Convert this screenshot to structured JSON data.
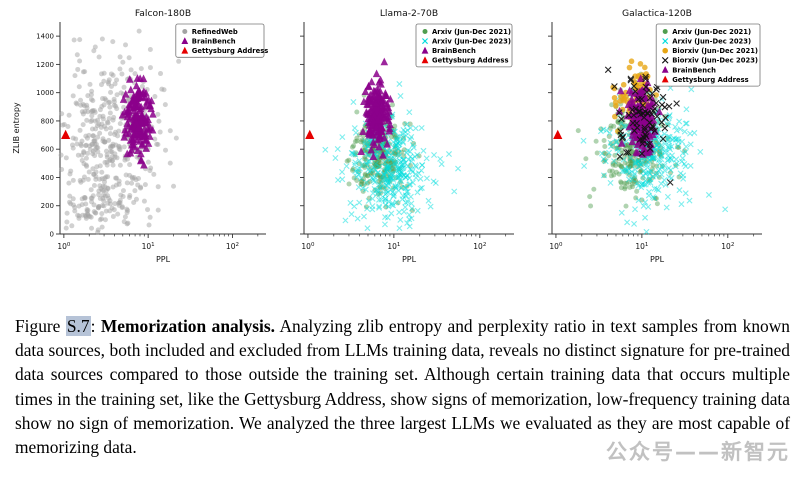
{
  "caption": {
    "figure_word": "Figure ",
    "ref": "S.7",
    "colon": ": ",
    "bold_title": "Memorization analysis.",
    "body": " Analyzing zlib entropy and perplexity ratio in text samples from known data sources, both included and excluded from LLMs training data, reveals no distinct signature for pre-trained data sources compared to those outside the training set. Although certain training data that occurs multiple times in the training set, like the Gettysburg Address, show signs of memorization, low-frequency training data show no sign of memorization. We analyzed the three largest LLMs we evaluated as they are most capable of memorizing data.",
    "ref_highlight_color": "#b6c3d7"
  },
  "watermark": {
    "text": "公众号——新智元",
    "color": "#8f8f8f"
  },
  "chart_data": [
    {
      "type": "scatter",
      "title": "Falcon-180B",
      "xlabel": "PPL",
      "ylabel": "ZLIB entropy",
      "show_ylabel": true,
      "show_ytick_labels": true,
      "x_scale": "log",
      "xlim": [
        0.9,
        250
      ],
      "ylim": [
        0,
        1500
      ],
      "yticks": [
        0,
        200,
        400,
        600,
        800,
        1000,
        1200,
        1400
      ],
      "xtick_exponents": [
        0,
        1,
        2
      ],
      "legend_position": "top-right",
      "series": [
        {
          "name": "RefinedWeb",
          "marker": "circle",
          "color": "#a3a3a3",
          "opacity": 0.5,
          "size": 2.5,
          "seed": 11,
          "zorder": 1,
          "clusters": [
            {
              "n": 420,
              "logx_mean": 0.55,
              "logx_sd": 0.28,
              "y_mean": 650,
              "y_sd": 320
            },
            {
              "n": 60,
              "logx_mean": 0.35,
              "logx_sd": 0.2,
              "y_mean": 210,
              "y_sd": 90
            }
          ]
        },
        {
          "name": "BrainBench",
          "marker": "triangle",
          "color": "#8b008b",
          "opacity": 0.85,
          "size": 3.8,
          "seed": 12,
          "zorder": 2,
          "clusters": [
            {
              "n": 160,
              "logx_mean": 0.88,
              "logx_sd": 0.075,
              "y_mean": 815,
              "y_sd": 120
            }
          ]
        },
        {
          "name": "Gettysburg Address",
          "marker": "triangle",
          "color": "#e60000",
          "opacity": 1,
          "size": 4.6,
          "seed": 13,
          "zorder": 9,
          "points": [
            [
              1.05,
              700
            ]
          ]
        }
      ]
    },
    {
      "type": "scatter",
      "title": "Llama-2-70B",
      "xlabel": "PPL",
      "ylabel": "ZLIB entropy",
      "show_ylabel": false,
      "show_ytick_labels": false,
      "x_scale": "log",
      "xlim": [
        0.9,
        250
      ],
      "ylim": [
        0,
        1500
      ],
      "yticks": [
        0,
        200,
        400,
        600,
        800,
        1000,
        1200,
        1400
      ],
      "xtick_exponents": [
        0,
        1,
        2
      ],
      "legend_position": "top-right",
      "series": [
        {
          "name": "Arxiv (Jun-Dec 2021)",
          "marker": "circle",
          "color": "#4f9d4f",
          "opacity": 0.45,
          "size": 2.5,
          "seed": 21,
          "zorder": 1,
          "clusters": [
            {
              "n": 260,
              "logx_mean": 0.82,
              "logx_sd": 0.16,
              "y_mean": 560,
              "y_sd": 160
            }
          ]
        },
        {
          "name": "Arxiv (Jun-Dec 2023)",
          "marker": "x",
          "color": "#00dddd",
          "opacity": 0.5,
          "size": 2.6,
          "seed": 22,
          "zorder": 2,
          "clusters": [
            {
              "n": 340,
              "logx_mean": 0.95,
              "logx_sd": 0.24,
              "y_mean": 470,
              "y_sd": 180
            }
          ]
        },
        {
          "name": "BrainBench",
          "marker": "triangle",
          "color": "#8b008b",
          "opacity": 0.85,
          "size": 3.8,
          "seed": 23,
          "zorder": 3,
          "clusters": [
            {
              "n": 160,
              "logx_mean": 0.8,
              "logx_sd": 0.07,
              "y_mean": 840,
              "y_sd": 115
            }
          ]
        },
        {
          "name": "Gettysburg Address",
          "marker": "triangle",
          "color": "#e60000",
          "opacity": 1,
          "size": 4.6,
          "seed": 24,
          "zorder": 9,
          "points": [
            [
              1.05,
              700
            ]
          ]
        }
      ]
    },
    {
      "type": "scatter",
      "title": "Galactica-120B",
      "xlabel": "PPL",
      "ylabel": "ZLIB entropy",
      "show_ylabel": false,
      "show_ytick_labels": false,
      "x_scale": "log",
      "xlim": [
        0.9,
        250
      ],
      "ylim": [
        0,
        1500
      ],
      "yticks": [
        0,
        200,
        400,
        600,
        800,
        1000,
        1200,
        1400
      ],
      "xtick_exponents": [
        0,
        1,
        2
      ],
      "legend_position": "top-right",
      "series": [
        {
          "name": "Arxiv (Jun-Dec 2021)",
          "marker": "circle",
          "color": "#4f9d4f",
          "opacity": 0.45,
          "size": 2.5,
          "seed": 31,
          "zorder": 1,
          "clusters": [
            {
              "n": 250,
              "logx_mean": 0.92,
              "logx_sd": 0.2,
              "y_mean": 600,
              "y_sd": 170
            }
          ]
        },
        {
          "name": "Arxiv (Jun-Dec 2023)",
          "marker": "x",
          "color": "#00dddd",
          "opacity": 0.5,
          "size": 2.6,
          "seed": 32,
          "zorder": 2,
          "clusters": [
            {
              "n": 290,
              "logx_mean": 1.08,
              "logx_sd": 0.24,
              "y_mean": 580,
              "y_sd": 175
            }
          ]
        },
        {
          "name": "Biorxiv (Jun-Dec 2021)",
          "marker": "circle",
          "color": "#e7a615",
          "opacity": 0.8,
          "size": 2.8,
          "seed": 33,
          "zorder": 3,
          "clusters": [
            {
              "n": 85,
              "logx_mean": 0.93,
              "logx_sd": 0.12,
              "y_mean": 960,
              "y_sd": 100
            }
          ]
        },
        {
          "name": "Biorxiv (Jun-Dec 2023)",
          "marker": "x",
          "color": "#111111",
          "opacity": 0.9,
          "size": 2.9,
          "seed": 34,
          "zorder": 5,
          "clusters": [
            {
              "n": 75,
              "logx_mean": 1.02,
              "logx_sd": 0.17,
              "y_mean": 850,
              "y_sd": 170
            }
          ]
        },
        {
          "name": "BrainBench",
          "marker": "triangle",
          "color": "#8b008b",
          "opacity": 0.85,
          "size": 3.8,
          "seed": 35,
          "zorder": 4,
          "clusters": [
            {
              "n": 150,
              "logx_mean": 0.99,
              "logx_sd": 0.08,
              "y_mean": 800,
              "y_sd": 115
            }
          ]
        },
        {
          "name": "Gettysburg Address",
          "marker": "triangle",
          "color": "#e60000",
          "opacity": 1,
          "size": 4.6,
          "seed": 36,
          "zorder": 9,
          "points": [
            [
              1.05,
              700
            ]
          ]
        }
      ]
    }
  ]
}
